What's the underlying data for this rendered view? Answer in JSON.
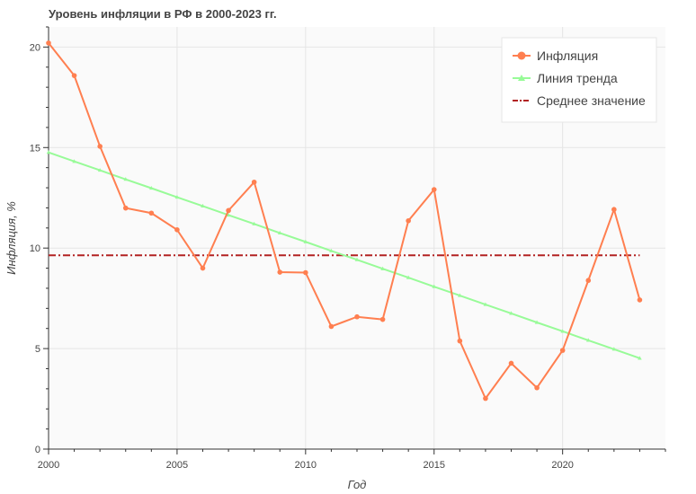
{
  "chart_data": {
    "type": "line",
    "title": "Уровень инфляции в РФ в 2000-2023 гг.",
    "xlabel": "Год",
    "ylabel": "Инфляция, %",
    "xlim": [
      2000,
      2024
    ],
    "ylim": [
      0,
      21
    ],
    "x_ticks": [
      2000,
      2005,
      2010,
      2015,
      2020
    ],
    "y_ticks": [
      0,
      5,
      10,
      15,
      20
    ],
    "grid": true,
    "legend_position": "top-right",
    "x": [
      2000,
      2001,
      2002,
      2003,
      2004,
      2005,
      2006,
      2007,
      2008,
      2009,
      2010,
      2011,
      2012,
      2013,
      2014,
      2015,
      2016,
      2017,
      2018,
      2019,
      2020,
      2021,
      2022,
      2023
    ],
    "series": [
      {
        "name": "Инфляция",
        "color": "#ff7f50",
        "marker": "circle",
        "values": [
          20.2,
          18.58,
          15.06,
          11.99,
          11.74,
          10.91,
          9.0,
          11.87,
          13.28,
          8.8,
          8.78,
          6.1,
          6.58,
          6.45,
          11.36,
          12.91,
          5.38,
          2.52,
          4.27,
          3.05,
          4.91,
          8.39,
          11.92,
          7.42
        ]
      },
      {
        "name": "Линия тренда",
        "color": "#98fb98",
        "marker": "triangle",
        "values": [
          14.76,
          14.31,
          13.87,
          13.42,
          12.98,
          12.53,
          12.09,
          11.64,
          11.2,
          10.75,
          10.31,
          9.86,
          9.42,
          8.97,
          8.53,
          8.08,
          7.64,
          7.19,
          6.75,
          6.3,
          5.86,
          5.41,
          4.97,
          4.52
        ]
      },
      {
        "name": "Среднее значение",
        "color": "#b22222",
        "style": "dashdot",
        "values": [
          9.64,
          9.64,
          9.64,
          9.64,
          9.64,
          9.64,
          9.64,
          9.64,
          9.64,
          9.64,
          9.64,
          9.64,
          9.64,
          9.64,
          9.64,
          9.64,
          9.64,
          9.64,
          9.64,
          9.64,
          9.64,
          9.64,
          9.64,
          9.64
        ]
      }
    ]
  }
}
